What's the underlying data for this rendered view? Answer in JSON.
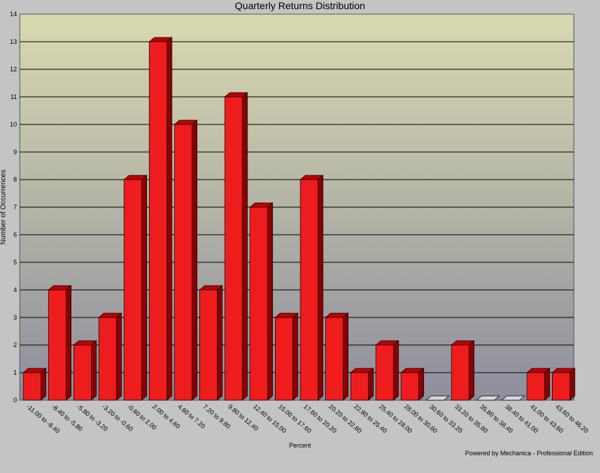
{
  "chart_data": {
    "type": "bar",
    "title": "Quarterly Returns Distribution",
    "xlabel": "Percent",
    "ylabel": "Number of Occurrences",
    "ylim": [
      0,
      14
    ],
    "yticks": [
      0,
      1,
      2,
      3,
      4,
      5,
      6,
      7,
      8,
      9,
      10,
      11,
      12,
      13,
      14
    ],
    "grid": true,
    "categories": [
      "-11.00 to -8.40",
      "-8.40 to -5.80",
      "-5.80 to -3.20",
      "-3.20 to -0.60",
      "-0.60 to 2.00",
      "2.00 to 4.60",
      "4.60 to 7.20",
      "7.20 to 9.80",
      "9.80 to 12.40",
      "12.40 to 15.00",
      "15.00 to 17.60",
      "17.60 to 20.20",
      "20.20 to 22.80",
      "22.80 to 25.40",
      "25.40 to 28.00",
      "28.00 to 30.60",
      "30.60 to 33.20",
      "33.20 to 35.80",
      "35.80 to 38.40",
      "38.40 to 41.00",
      "41.00 to 43.60",
      "43.60 to 46.20"
    ],
    "values": [
      1,
      4,
      2,
      3,
      8,
      13,
      10,
      4,
      11,
      7,
      3,
      8,
      3,
      1,
      2,
      1,
      0,
      2,
      0,
      0,
      1,
      1
    ],
    "colors": {
      "bar_front": "#ee1c1c",
      "bar_top": "#c00000",
      "bar_side": "#8a0000",
      "empty_bar": "#d8d8d8",
      "plot_top": "#d9d9b0",
      "plot_bottom": "#8e8e9e"
    }
  },
  "footer": "Powered by Mechanica - Professional Edition"
}
